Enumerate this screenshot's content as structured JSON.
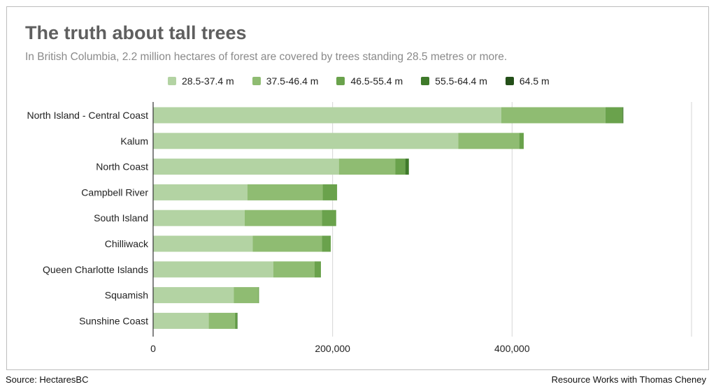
{
  "title": "The truth about tall trees",
  "subtitle": "In British Columbia, 2.2 million hectares of forest are covered by trees standing 28.5 metres or more.",
  "footer": {
    "source": "Source: HectaresBC",
    "credit": "Resource Works with Thomas Cheney"
  },
  "chart_data": {
    "type": "bar",
    "orientation": "horizontal",
    "stacked": true,
    "title": "The truth about tall trees",
    "xlabel": "",
    "ylabel": "",
    "xlim": [
      0,
      600000
    ],
    "xticks": [
      0,
      200000,
      400000
    ],
    "xtick_labels": [
      "0",
      "200,000",
      "400,000"
    ],
    "legend_position": "top",
    "grid": true,
    "categories": [
      "North Island - Central Coast",
      "Kalum",
      "North Coast",
      "Campbell River",
      "South Island",
      "Chilliwack",
      "Queen Charlotte Islands",
      "Squamish",
      "Sunshine Coast"
    ],
    "series": [
      {
        "name": "28.5-37.4 m",
        "color": "#b3d3a3",
        "values": [
          388000,
          340000,
          207000,
          105000,
          102000,
          111000,
          134000,
          90000,
          62000
        ]
      },
      {
        "name": "37.5-46.4 m",
        "color": "#8fbc72",
        "values": [
          116000,
          68000,
          63000,
          84000,
          86000,
          77000,
          46000,
          27000,
          29000
        ]
      },
      {
        "name": "46.5-55.4 m",
        "color": "#6aa24c",
        "values": [
          19000,
          5000,
          11000,
          16000,
          16000,
          10000,
          7000,
          1000,
          2000
        ]
      },
      {
        "name": "55.5-64.4 m",
        "color": "#3f7a2a",
        "values": [
          1000,
          0,
          4000,
          0,
          0,
          0,
          0,
          0,
          1000
        ]
      },
      {
        "name": "64.5 m",
        "color": "#244f19",
        "values": [
          0,
          0,
          0,
          0,
          0,
          0,
          0,
          0,
          0
        ]
      }
    ]
  }
}
